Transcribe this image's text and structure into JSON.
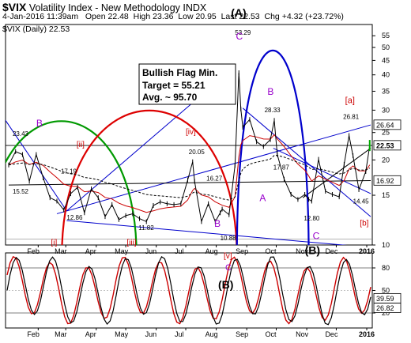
{
  "header": {
    "symbol": "$VIX",
    "name": "Volatility Index - New Methodology",
    "exchange": "INDX",
    "datetime": "4-Jan-2016 11:39am",
    "open_label": "Open",
    "open": "22.48",
    "high_label": "High",
    "high": "23.36",
    "low_label": "Low",
    "low": "20.95",
    "last_label": "Last",
    "last": "22.53",
    "chg_label": "Chg",
    "chg": "+4.32 (+23.72%)",
    "legend": "$VIX (Daily) 22.53"
  },
  "annotation_box": {
    "line1": "Bullish Flag Min.",
    "line2": "Target = 55.21",
    "line3": "Avg. ~ 95.70"
  },
  "colors": {
    "price": "#000000",
    "ma_short": "#cc0000",
    "ma_long": "#000000",
    "wave_label": "#9900cc",
    "wave_red": "#cc0000",
    "cycle_blue": "#0000cc",
    "cycle_red": "#dd0000",
    "cycle_green": "#009900",
    "stoch_fast": "#000000",
    "stoch_slow": "#cc0000"
  },
  "chart_data": [
    {
      "type": "line",
      "scale": "log",
      "title": "$VIX (Daily) 22.53",
      "ylim": [
        10,
        58
      ],
      "y_ticks": [
        10,
        15,
        20,
        25,
        30,
        35,
        40,
        45,
        50,
        55
      ],
      "x_ticks": [
        "Feb",
        "Mar",
        "Apr",
        "May",
        "Jun",
        "Jul",
        "Aug",
        "Sep",
        "Oct",
        "Nov",
        "Dec",
        "2016"
      ],
      "series": [
        {
          "name": "$VIX",
          "x": [
            "2015-01-02",
            "2015-01-09",
            "2015-01-16",
            "2015-01-23",
            "2015-01-30",
            "2015-02-06",
            "2015-02-13",
            "2015-02-20",
            "2015-02-27",
            "2015-03-06",
            "2015-03-13",
            "2015-03-20",
            "2015-03-27",
            "2015-04-03",
            "2015-04-10",
            "2015-04-17",
            "2015-04-24",
            "2015-05-01",
            "2015-05-08",
            "2015-05-15",
            "2015-05-22",
            "2015-05-29",
            "2015-06-05",
            "2015-06-12",
            "2015-06-19",
            "2015-06-26",
            "2015-07-03",
            "2015-07-08",
            "2015-07-10",
            "2015-07-17",
            "2015-07-24",
            "2015-07-31",
            "2015-08-05",
            "2015-08-07",
            "2015-08-14",
            "2015-08-20",
            "2015-08-24",
            "2015-08-26",
            "2015-08-28",
            "2015-09-04",
            "2015-09-11",
            "2015-09-18",
            "2015-09-25",
            "2015-09-29",
            "2015-10-02",
            "2015-10-09",
            "2015-10-16",
            "2015-10-23",
            "2015-10-30",
            "2015-11-03",
            "2015-11-06",
            "2015-11-13",
            "2015-11-20",
            "2015-11-27",
            "2015-12-04",
            "2015-12-09",
            "2015-12-14",
            "2015-12-18",
            "2015-12-24",
            "2015-12-31",
            "2016-01-04"
          ],
          "values": [
            19.2,
            21.4,
            20.9,
            16.8,
            20.9,
            17.3,
            14.7,
            14.3,
            13.3,
            15.2,
            16.0,
            13.0,
            15.8,
            14.7,
            12.6,
            13.9,
            12.3,
            12.7,
            12.9,
            12.4,
            12.1,
            13.8,
            14.2,
            14.0,
            13.9,
            14.0,
            17.0,
            19.7,
            16.8,
            12.1,
            14.0,
            12.1,
            13.0,
            13.4,
            12.8,
            19.1,
            40.7,
            30.3,
            26.1,
            27.8,
            23.2,
            22.3,
            23.6,
            27.6,
            20.9,
            17.1,
            15.1,
            14.5,
            15.1,
            14.5,
            14.3,
            20.1,
            15.5,
            15.1,
            14.8,
            19.3,
            24.4,
            20.7,
            15.7,
            18.2,
            22.5
          ]
        }
      ],
      "price_labels": [
        "23.43",
        "17.19",
        "15.52",
        "12.86",
        "11.82",
        "20.05",
        "16.27",
        "10.88",
        "53.29",
        "28.33",
        "17.87",
        "12.80",
        "26.81",
        "14.45"
      ],
      "right_labels": [
        "26.64",
        "22.53",
        "16.92"
      ],
      "wave_labels": [
        "B",
        "[ii]",
        "[i]",
        "[iii]",
        "[iv]",
        "B",
        "(A)",
        "C",
        "B",
        "A",
        "C",
        "(B)",
        "[a]",
        "[b]"
      ]
    },
    {
      "type": "line",
      "title": "",
      "ylim": [
        0,
        100
      ],
      "y_ticks": [
        20,
        50,
        80
      ],
      "x_ticks": [
        "Feb",
        "Mar",
        "Apr",
        "May",
        "Jun",
        "Jul",
        "Aug",
        "Sep",
        "Oct",
        "Nov",
        "Dec",
        "2016"
      ],
      "right_labels": [
        "39.59",
        "26.82"
      ],
      "wave_labels": [
        "[v]",
        "C",
        "(B)"
      ]
    }
  ]
}
